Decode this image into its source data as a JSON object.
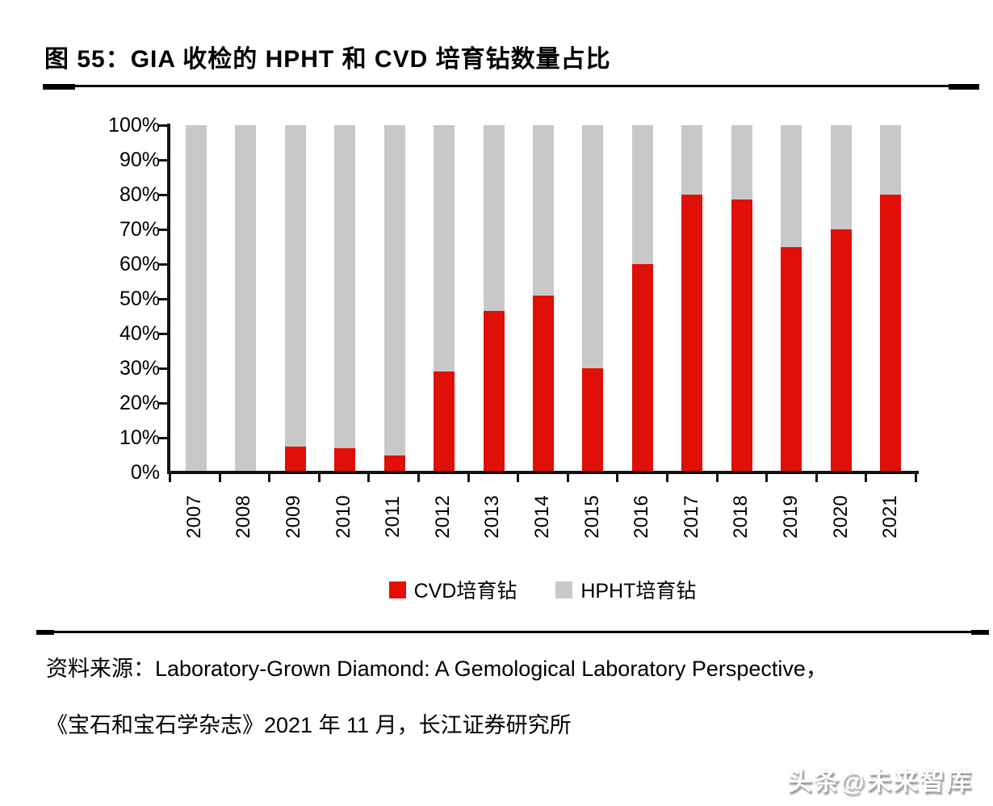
{
  "figure": {
    "title": "图 55：GIA 收检的 HPHT 和 CVD 培育钻数量占比",
    "source_line1": "资料来源：Laboratory-Grown Diamond: A Gemological Laboratory Perspective，",
    "source_line2": "《宝石和宝石学杂志》2021 年 11 月，长江证券研究所",
    "watermark": "头条@未来智库"
  },
  "chart_data": {
    "type": "bar",
    "stacked": true,
    "title": "GIA 收检的 HPHT 和 CVD 培育钻数量占比",
    "xlabel": "",
    "ylabel": "",
    "ylim": [
      0,
      100
    ],
    "grid": false,
    "legend_position": "bottom",
    "y_ticks": [
      "100%",
      "90%",
      "80%",
      "70%",
      "60%",
      "50%",
      "40%",
      "30%",
      "20%",
      "10%",
      "0%"
    ],
    "categories": [
      "2007",
      "2008",
      "2009",
      "2010",
      "2011",
      "2012",
      "2013",
      "2014",
      "2015",
      "2016",
      "2017",
      "2018",
      "2019",
      "2020",
      "2021"
    ],
    "series": [
      {
        "name": "CVD培育钻",
        "color": "#e00f08",
        "values": [
          0.5,
          0.5,
          7.5,
          7,
          5,
          29,
          46.5,
          51,
          30,
          60,
          80,
          78.5,
          65,
          70,
          80
        ]
      },
      {
        "name": "HPHT培育钻",
        "color": "#c8c8c8",
        "values": [
          99.5,
          99.5,
          92.5,
          93,
          95,
          71,
          53.5,
          49,
          70,
          40,
          20,
          21.5,
          35,
          30,
          20
        ]
      }
    ],
    "axis_color": "#111111"
  }
}
